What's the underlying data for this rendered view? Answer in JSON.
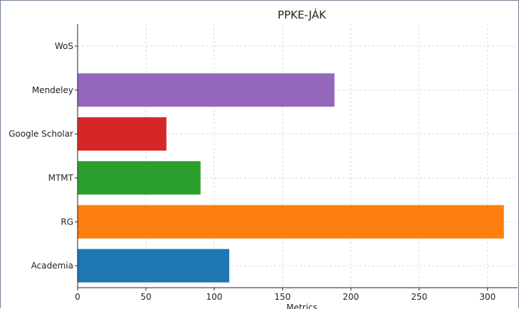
{
  "chart_data": {
    "type": "bar",
    "orientation": "horizontal",
    "title": "PPKE-JÁK",
    "xlabel": "Metrics",
    "ylabel": "",
    "categories": [
      "Academia",
      "RG",
      "MTMT",
      "Google Scholar",
      "Mendeley",
      "WoS"
    ],
    "values": [
      111,
      312,
      90,
      65,
      188,
      0
    ],
    "colors": [
      "#1f77b4",
      "#ff7f0e",
      "#2ca02c",
      "#d62728",
      "#9467bd",
      "#8c564b"
    ],
    "xlim": [
      0,
      322
    ],
    "xticks": [
      0,
      50,
      100,
      150,
      200,
      250,
      300
    ],
    "grid": true
  }
}
